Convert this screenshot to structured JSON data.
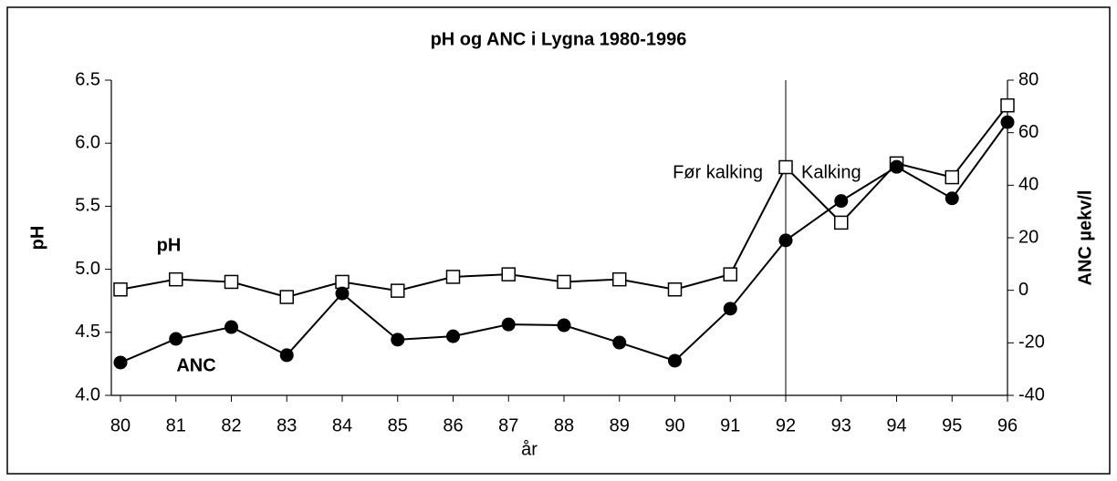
{
  "chart_data": {
    "type": "line",
    "title": "pH og ANC i Lygna 1980-1996",
    "x_label": "år",
    "y_label": "pH",
    "y2_label": "ANC µekv/l",
    "categories": [
      "80",
      "81",
      "82",
      "83",
      "84",
      "85",
      "86",
      "87",
      "88",
      "89",
      "90",
      "91",
      "92",
      "93",
      "94",
      "95",
      "96"
    ],
    "series": [
      {
        "name": "pH",
        "color": "#000000",
        "marker": "square",
        "values": [
          4.84,
          4.92,
          4.9,
          4.78,
          4.9,
          4.83,
          4.94,
          4.96,
          4.9,
          4.92,
          4.84,
          4.96,
          5.81,
          5.37,
          5.84,
          5.73,
          6.3
        ]
      },
      {
        "name": "ANC",
        "color": "#000000",
        "marker": "circle",
        "axis": "y2",
        "values": [
          -27.5,
          -18.5,
          -14,
          -24.7,
          -1.2,
          -18.8,
          -17.5,
          -13,
          -13.3,
          -19.9,
          -26.8,
          -7,
          19,
          34,
          47,
          35,
          64
        ]
      }
    ],
    "ylim": [
      4.0,
      6.5
    ],
    "yticks": [
      {
        "value": 4.0,
        "label": "4.0"
      },
      4.5,
      {
        "value": 5.0,
        "label": "5.0"
      },
      5.5,
      {
        "value": 6.0,
        "label": "6.0"
      },
      6.5
    ],
    "y2lim": [
      -40,
      80
    ],
    "y2ticks": [
      -40,
      -20,
      0,
      20,
      40,
      60,
      80
    ],
    "vline": "92",
    "annotations": [
      "Før kalking",
      "Kalking"
    ]
  }
}
